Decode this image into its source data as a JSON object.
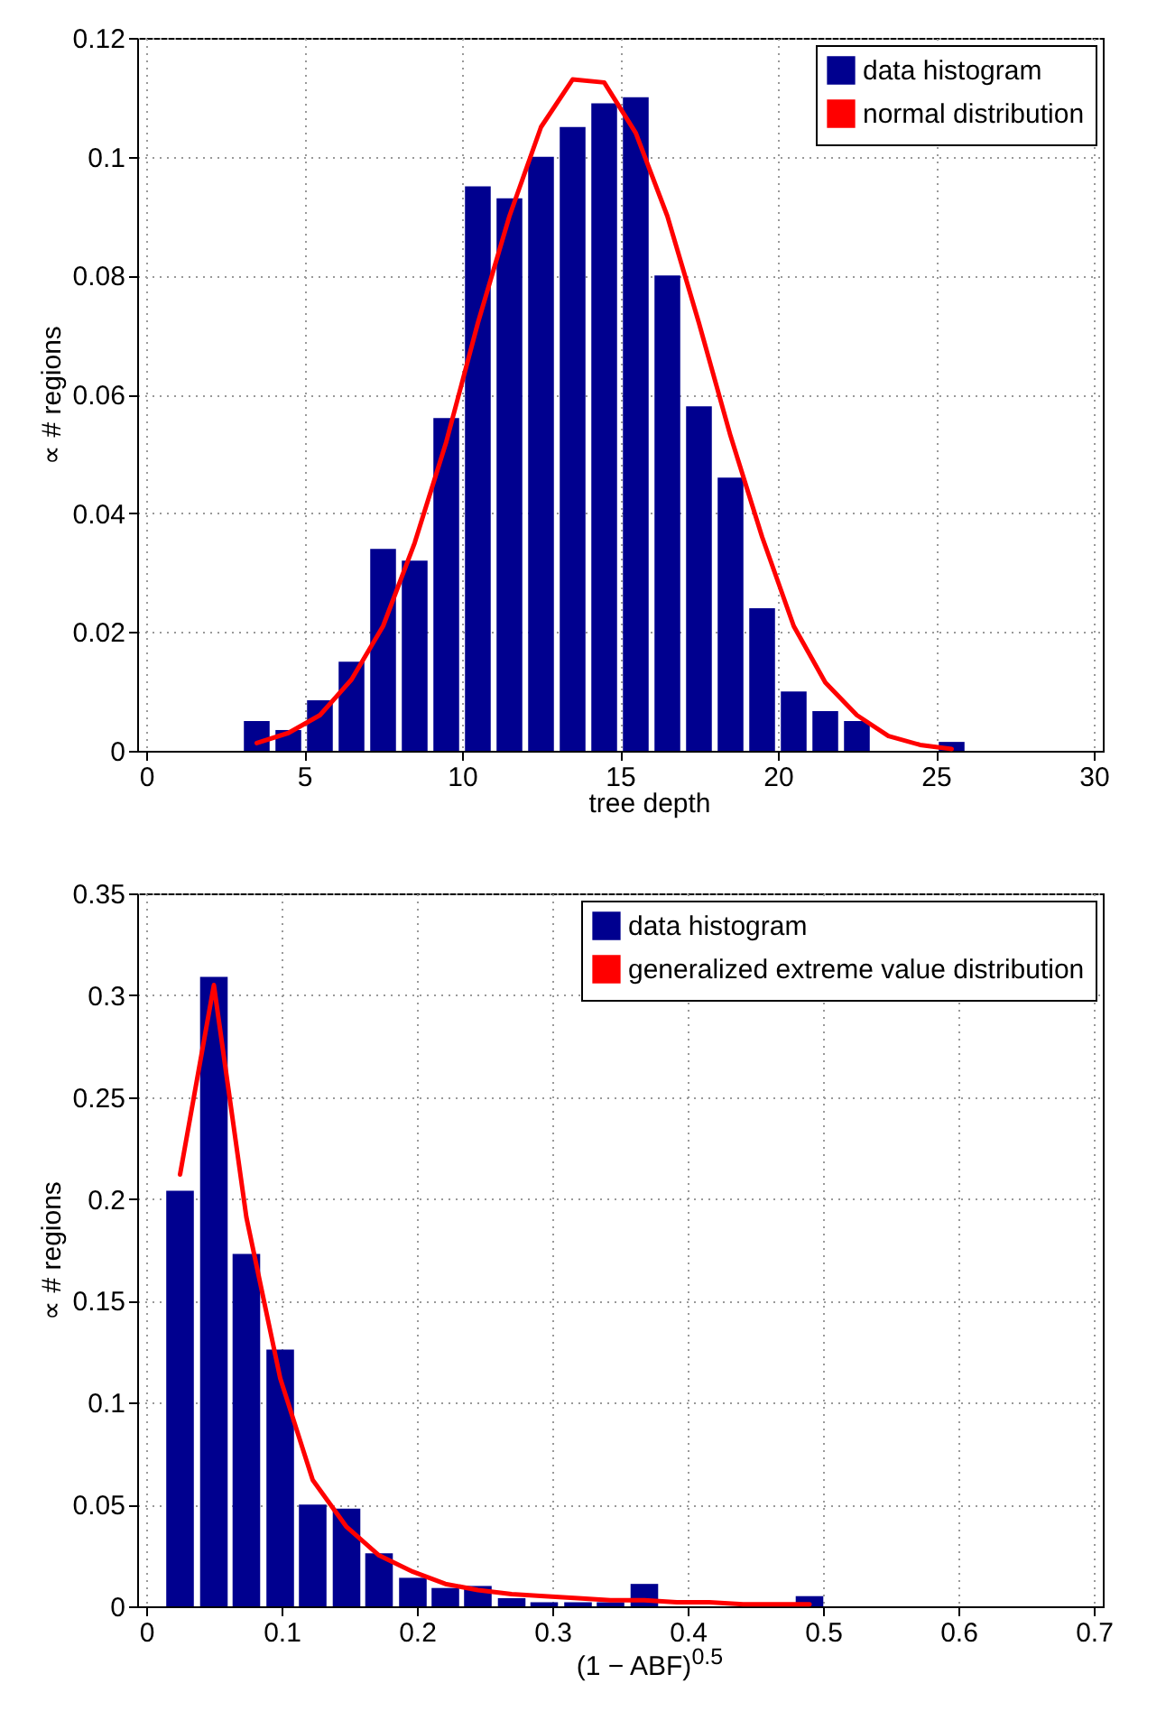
{
  "chart_data": [
    {
      "type": "bar",
      "xlabel": "tree depth",
      "ylabel": "∝ # regions",
      "series": [
        {
          "name": "data histogram",
          "color": "#00008f",
          "x": [
            3.5,
            4.5,
            5.5,
            6.5,
            7.5,
            8.5,
            9.5,
            10.5,
            11.5,
            12.5,
            13.5,
            14.5,
            15.5,
            16.5,
            17.5,
            18.5,
            19.5,
            20.5,
            21.5,
            22.5,
            23.5,
            24.5,
            25.5
          ],
          "values": [
            0.005,
            0.0035,
            0.0085,
            0.015,
            0.034,
            0.032,
            0.056,
            0.095,
            0.093,
            0.1,
            0.105,
            0.109,
            0.11,
            0.08,
            0.058,
            0.046,
            0.024,
            0.01,
            0.0067,
            0.005,
            0,
            0,
            0.0015
          ]
        },
        {
          "name": "normal distribution",
          "type": "line",
          "color": "#ff0000",
          "x": [
            3.5,
            4.5,
            5.5,
            6.5,
            7.5,
            8.5,
            9.5,
            10.5,
            11.5,
            12.5,
            13.5,
            14.5,
            15.5,
            16.5,
            17.5,
            18.5,
            19.5,
            20.5,
            21.5,
            22.5,
            23.5,
            24.5,
            25.5
          ],
          "values": [
            0.0013,
            0.003,
            0.006,
            0.012,
            0.021,
            0.035,
            0.052,
            0.072,
            0.09,
            0.105,
            0.113,
            0.1125,
            0.104,
            0.09,
            0.072,
            0.053,
            0.036,
            0.021,
            0.0115,
            0.006,
            0.0025,
            0.001,
            0.0003
          ]
        }
      ],
      "xlim": [
        0,
        30
      ],
      "xticks": [
        0,
        5,
        10,
        15,
        20,
        25,
        30
      ],
      "ylim": [
        0,
        0.12
      ],
      "yticks": [
        0,
        0.02,
        0.04,
        0.06,
        0.08,
        0.1,
        0.12
      ],
      "grid": true,
      "legend": "top right"
    },
    {
      "type": "bar",
      "xlabel": "(1 − ABF)$^{0.5}$",
      "ylabel": "∝ # regions",
      "series": [
        {
          "name": "data histogram",
          "color": "#00008f",
          "x": [
            0.025,
            0.05,
            0.074,
            0.099,
            0.123,
            0.148,
            0.172,
            0.197,
            0.221,
            0.245,
            0.27,
            0.294,
            0.319,
            0.343,
            0.368,
            0.392,
            0.416,
            0.441,
            0.465,
            0.49
          ],
          "values": [
            0.204,
            0.309,
            0.173,
            0.126,
            0.05,
            0.048,
            0.026,
            0.014,
            0.009,
            0.01,
            0.004,
            0.002,
            0.002,
            0.002,
            0.011,
            0,
            0,
            0,
            0,
            0.005
          ]
        },
        {
          "name": "generalized extreme value distribution",
          "type": "line",
          "color": "#ff0000",
          "x": [
            0.025,
            0.05,
            0.074,
            0.099,
            0.123,
            0.148,
            0.172,
            0.197,
            0.221,
            0.245,
            0.27,
            0.294,
            0.319,
            0.343,
            0.368,
            0.392,
            0.416,
            0.441,
            0.465,
            0.49
          ],
          "values": [
            0.212,
            0.305,
            0.191,
            0.112,
            0.062,
            0.039,
            0.025,
            0.017,
            0.011,
            0.008,
            0.006,
            0.005,
            0.004,
            0.003,
            0.003,
            0.002,
            0.002,
            0.001,
            0.001,
            0.001
          ]
        }
      ],
      "xlim": [
        0,
        0.7
      ],
      "xticks": [
        0,
        0.1,
        0.2,
        0.3,
        0.4,
        0.5,
        0.6,
        0.7
      ],
      "ylim": [
        0,
        0.35
      ],
      "yticks": [
        0,
        0.05,
        0.1,
        0.15,
        0.2,
        0.25,
        0.3,
        0.35
      ],
      "grid": true,
      "legend": "top right"
    }
  ]
}
